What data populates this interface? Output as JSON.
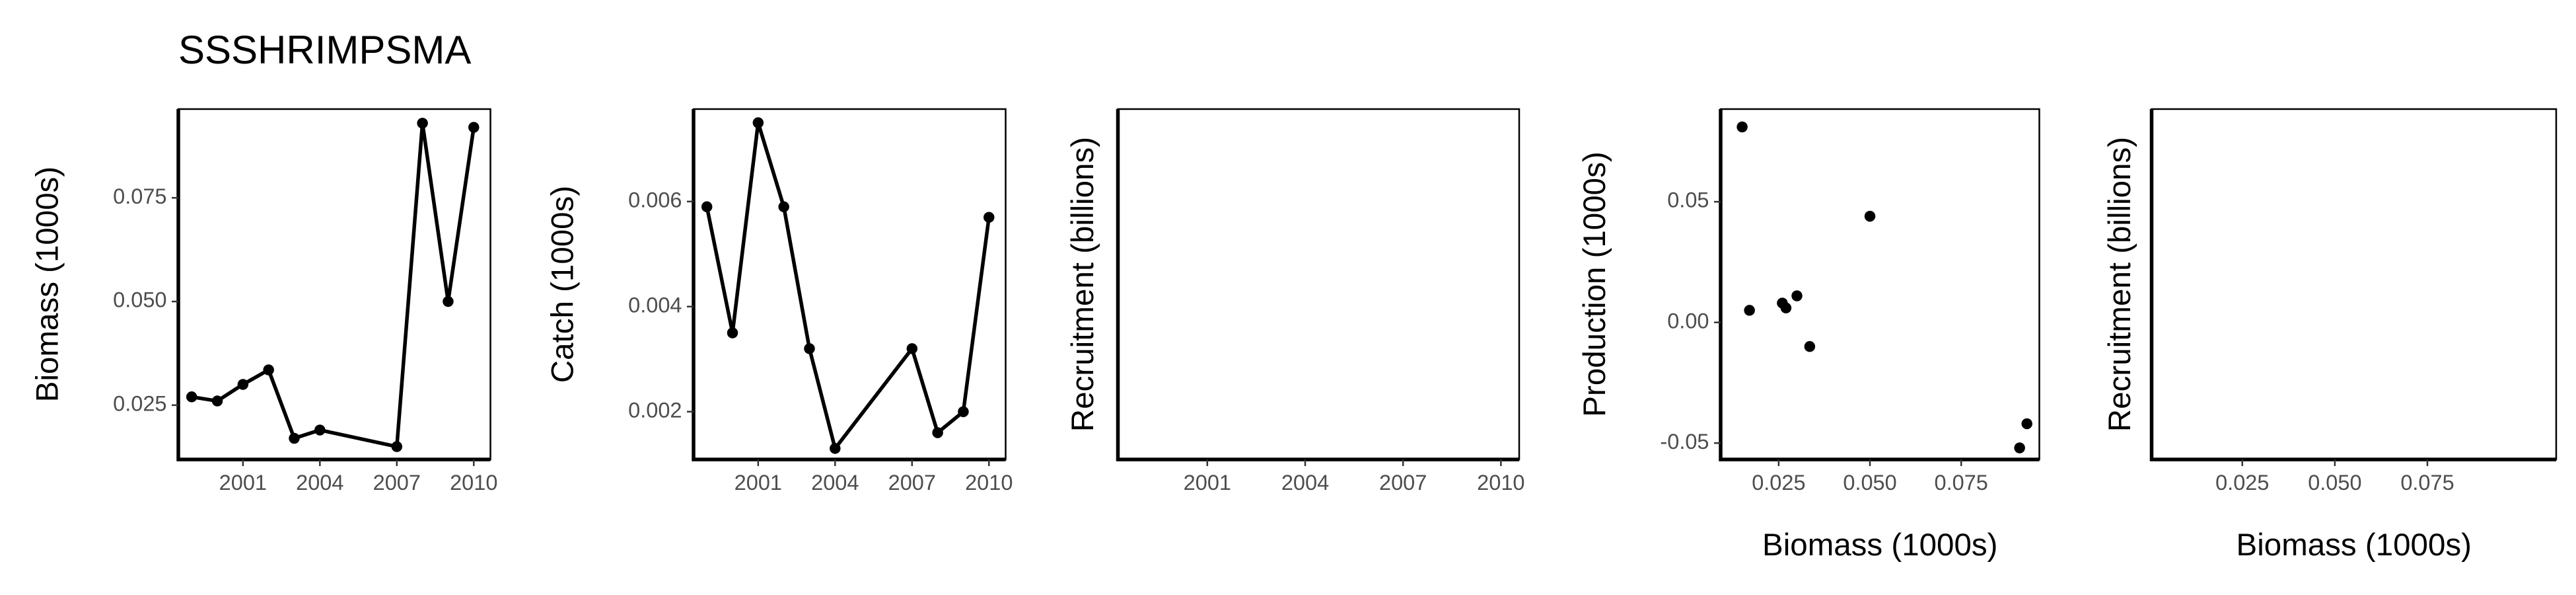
{
  "chart_data": [
    {
      "type": "line",
      "title": "SSSHRIMPSMA",
      "ylabel": "Biomass (1000s)",
      "color": "#000000",
      "x": [
        1999,
        2000,
        2001,
        2002,
        2003,
        2004,
        2007,
        2008,
        2009,
        2010
      ],
      "values": [
        0.027,
        0.026,
        0.03,
        0.0335,
        0.017,
        0.019,
        0.015,
        0.093,
        0.05,
        0.092
      ],
      "xlim": [
        1998.48,
        2010.65
      ],
      "xticks": [
        2001,
        2004,
        2007,
        2010
      ],
      "ylim": [
        0.0119,
        0.0964
      ],
      "yticks": [
        0.025,
        {
          "value": 0.05,
          "label": "0.050"
        },
        0.075
      ]
    },
    {
      "type": "line",
      "ylabel": "Catch (1000s)",
      "color": "#000000",
      "x": [
        1999,
        2000,
        2001,
        2002,
        2003,
        2004,
        2007,
        2008,
        2009,
        2010
      ],
      "values": [
        0.0059,
        0.0035,
        0.0075,
        0.0059,
        0.0032,
        0.0013,
        0.0032,
        0.0016,
        0.002,
        0.0057
      ],
      "xlim": [
        1998.48,
        2010.65
      ],
      "xticks": [
        2001,
        2004,
        2007,
        2010
      ],
      "ylim": [
        0.00109,
        0.00776
      ],
      "yticks": [
        0.002,
        0.004,
        0.006
      ]
    },
    {
      "type": "line",
      "ylabel": "Recruitment (billions)",
      "xlim": [
        1998.26,
        2010.56
      ],
      "xticks": [
        2001,
        2004,
        2007,
        2010
      ]
    },
    {
      "type": "scatter",
      "xlabel": "Biomass (1000s)",
      "ylabel": "Production (1000s)",
      "color": "#000000",
      "x": [
        0.015,
        0.017,
        0.026,
        0.027,
        0.03,
        0.0335,
        0.05,
        0.091,
        0.093
      ],
      "values": [
        0.081,
        0.005,
        0.008,
        0.006,
        0.011,
        -0.01,
        0.044,
        -0.052,
        -0.042
      ],
      "xlim": [
        0.0091,
        0.0964
      ],
      "xticks": [
        0.025,
        {
          "value": 0.05,
          "label": "0.050"
        },
        0.075
      ],
      "ylim": [
        -0.0568,
        0.0884
      ],
      "yticks": [
        -0.05,
        {
          "value": 0,
          "label": "0.00"
        },
        0.05
      ]
    },
    {
      "type": "scatter",
      "xlabel": "Biomass (1000s)",
      "ylabel": "Recruitment (billions)",
      "xlim": [
        0.0005,
        0.1098
      ],
      "xticks": [
        0.025,
        {
          "value": 0.05,
          "label": "0.050"
        },
        0.075
      ]
    }
  ]
}
